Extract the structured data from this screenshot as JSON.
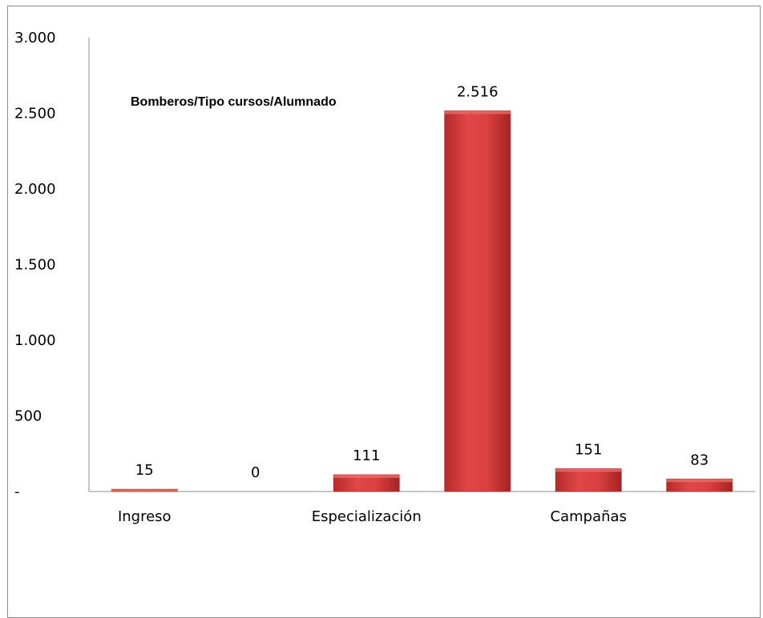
{
  "chart_data": {
    "type": "bar",
    "title": "Bomberos/Tipo cursos/Alumnado",
    "categories": [
      "Ingreso",
      "",
      "Especialización",
      "",
      "Campañas",
      ""
    ],
    "values": [
      15,
      0,
      111,
      2516,
      151,
      83
    ],
    "value_labels": [
      "15",
      "0",
      "111",
      "2.516",
      "151",
      "83"
    ],
    "ylim": [
      0,
      3000
    ],
    "y_ticks": [
      0,
      500,
      1000,
      1500,
      2000,
      2500,
      3000
    ],
    "y_tick_labels": [
      "-",
      "500",
      "1.000",
      "1.500",
      "2.000",
      "2.500",
      "3.000"
    ],
    "xlabel": "",
    "ylabel": "",
    "grid": false,
    "legend": "none",
    "colors": {
      "bar_fill": "#d9403f",
      "bar_dark": "#b52a29",
      "bar_light": "#e86b69",
      "axis": "#8c8c8c"
    }
  }
}
